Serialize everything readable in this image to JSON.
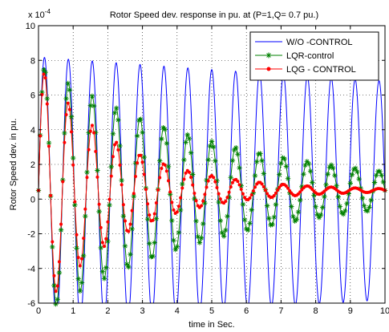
{
  "chart_data": {
    "type": "line",
    "title": "Rotor Speed dev. response in pu. at (P=1,Q= 0.7 pu.)",
    "xlabel": "time in Sec.",
    "ylabel": "Rotor Speed dev. in  pu.",
    "y_multiplier_label": "x 10",
    "y_multiplier_exponent": "-4",
    "xlim": [
      0,
      10
    ],
    "ylim": [
      -6,
      10
    ],
    "x_ticks": [
      "0",
      "1",
      "2",
      "3",
      "4",
      "5",
      "6",
      "7",
      "8",
      "9",
      "10"
    ],
    "y_ticks": [
      "-6",
      "-4",
      "-2",
      "0",
      "2",
      "4",
      "6",
      "8",
      "10"
    ],
    "grid": true,
    "legend_position": "top-right",
    "series": [
      {
        "name": "W/O -CONTROL",
        "color": "#0000ff",
        "marker": "none",
        "model": "0.5 + A*exp(-d*t)*sin(2*pi*f*t)",
        "frequency_hz": 1.45,
        "amplitude": 7.7,
        "decay": 0.02
      },
      {
        "name": "LQR-control",
        "color": "#008000",
        "marker": "star",
        "model": "0.5 + A*exp(-d*t)*sin(2*pi*f*t)",
        "frequency_hz": 1.45,
        "amplitude": 7.3,
        "decay": 0.19
      },
      {
        "name": "LQG - CONTROL",
        "color": "#ff0000",
        "marker": "dot",
        "model": "0.5 + A*exp(-d*t)*sin(2*pi*f*t)",
        "frequency_hz": 1.45,
        "amplitude": 7.3,
        "decay": 0.43
      }
    ]
  }
}
